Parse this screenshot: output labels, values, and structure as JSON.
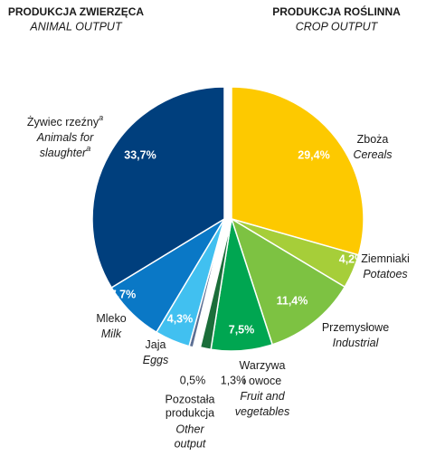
{
  "chart_data": {
    "type": "pie",
    "groups": [
      {
        "title": "PRODUKCJA ZWIERZĘCA",
        "subtitle": "ANIMAL OUTPUT"
      },
      {
        "title": "PRODUKCJA ROŚLINNA",
        "subtitle": "CROP OUTPUT"
      }
    ],
    "note_mark": "a",
    "other_label": {
      "labels": [
        "Pozostała",
        "produkcja"
      ],
      "labels_en": [
        "Other",
        "output"
      ]
    },
    "slices": [
      {
        "group": 1,
        "labels": [
          "Zboża"
        ],
        "labels_en": [
          "Cereals"
        ],
        "value": 29.4,
        "value_label": "29,4%",
        "color": "#fdc900"
      },
      {
        "group": 1,
        "labels": [
          "Ziemniaki"
        ],
        "labels_en": [
          "Potatoes"
        ],
        "value": 4.2,
        "value_label": "4,2%",
        "color": "#a6ce39"
      },
      {
        "group": 1,
        "labels": [
          "Przemysłowe"
        ],
        "labels_en": [
          "Industrial"
        ],
        "value": 11.4,
        "value_label": "11,4%",
        "color": "#7dc242"
      },
      {
        "group": 1,
        "labels": [
          "Warzywa",
          "i owoce"
        ],
        "labels_en": [
          "Fruit and",
          "vegetables"
        ],
        "value": 7.5,
        "value_label": "7,5%",
        "color": "#00a651"
      },
      {
        "group": 1,
        "value": 1.3,
        "value_label": "1,3%",
        "color": "#1b6e3a"
      },
      {
        "group": 0,
        "value": 0.5,
        "value_label": "0,5%",
        "color": "#5c6f94"
      },
      {
        "group": 0,
        "labels": [
          "Jaja"
        ],
        "labels_en": [
          "Eggs"
        ],
        "value": 4.3,
        "value_label": "4,3%",
        "color": "#41c0f0"
      },
      {
        "group": 0,
        "labels": [
          "Mleko"
        ],
        "labels_en": [
          "Milk"
        ],
        "value": 7.7,
        "value_label": "7,7%",
        "color": "#0a78c6"
      },
      {
        "group": 0,
        "labels": [
          "Żywiec rzeźny"
        ],
        "labels_en": [
          "Animals for",
          "slaughter"
        ],
        "value": 33.7,
        "value_label": "33,7%",
        "color": "#003f7d"
      }
    ]
  }
}
